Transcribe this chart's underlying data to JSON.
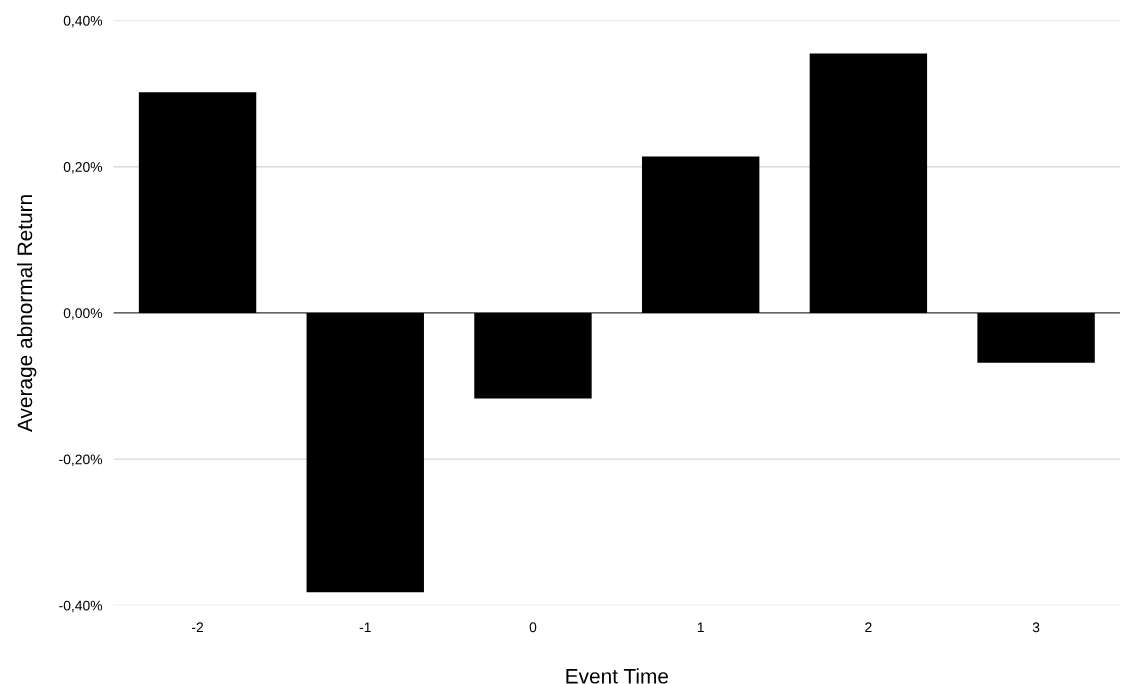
{
  "chart_data": {
    "type": "bar",
    "xlabel": "Event Time",
    "ylabel": "Average abnormal Return",
    "categories": [
      "-2",
      "-1",
      "0",
      "1",
      "2",
      "3"
    ],
    "values": [
      0.302,
      -0.382,
      -0.117,
      0.214,
      0.355,
      -0.068
    ],
    "color": "#000000",
    "ylim": [
      -0.4,
      0.4
    ],
    "yticks": [
      {
        "value": -0.4,
        "label": "-0,40%"
      },
      {
        "value": -0.2,
        "label": "-0,20%"
      },
      {
        "value": 0,
        "label": "0,00%"
      },
      {
        "value": 0.2,
        "label": "0,20%"
      },
      {
        "value": 0.4,
        "label": "0,40%"
      }
    ],
    "grid": "y",
    "legend": false
  }
}
